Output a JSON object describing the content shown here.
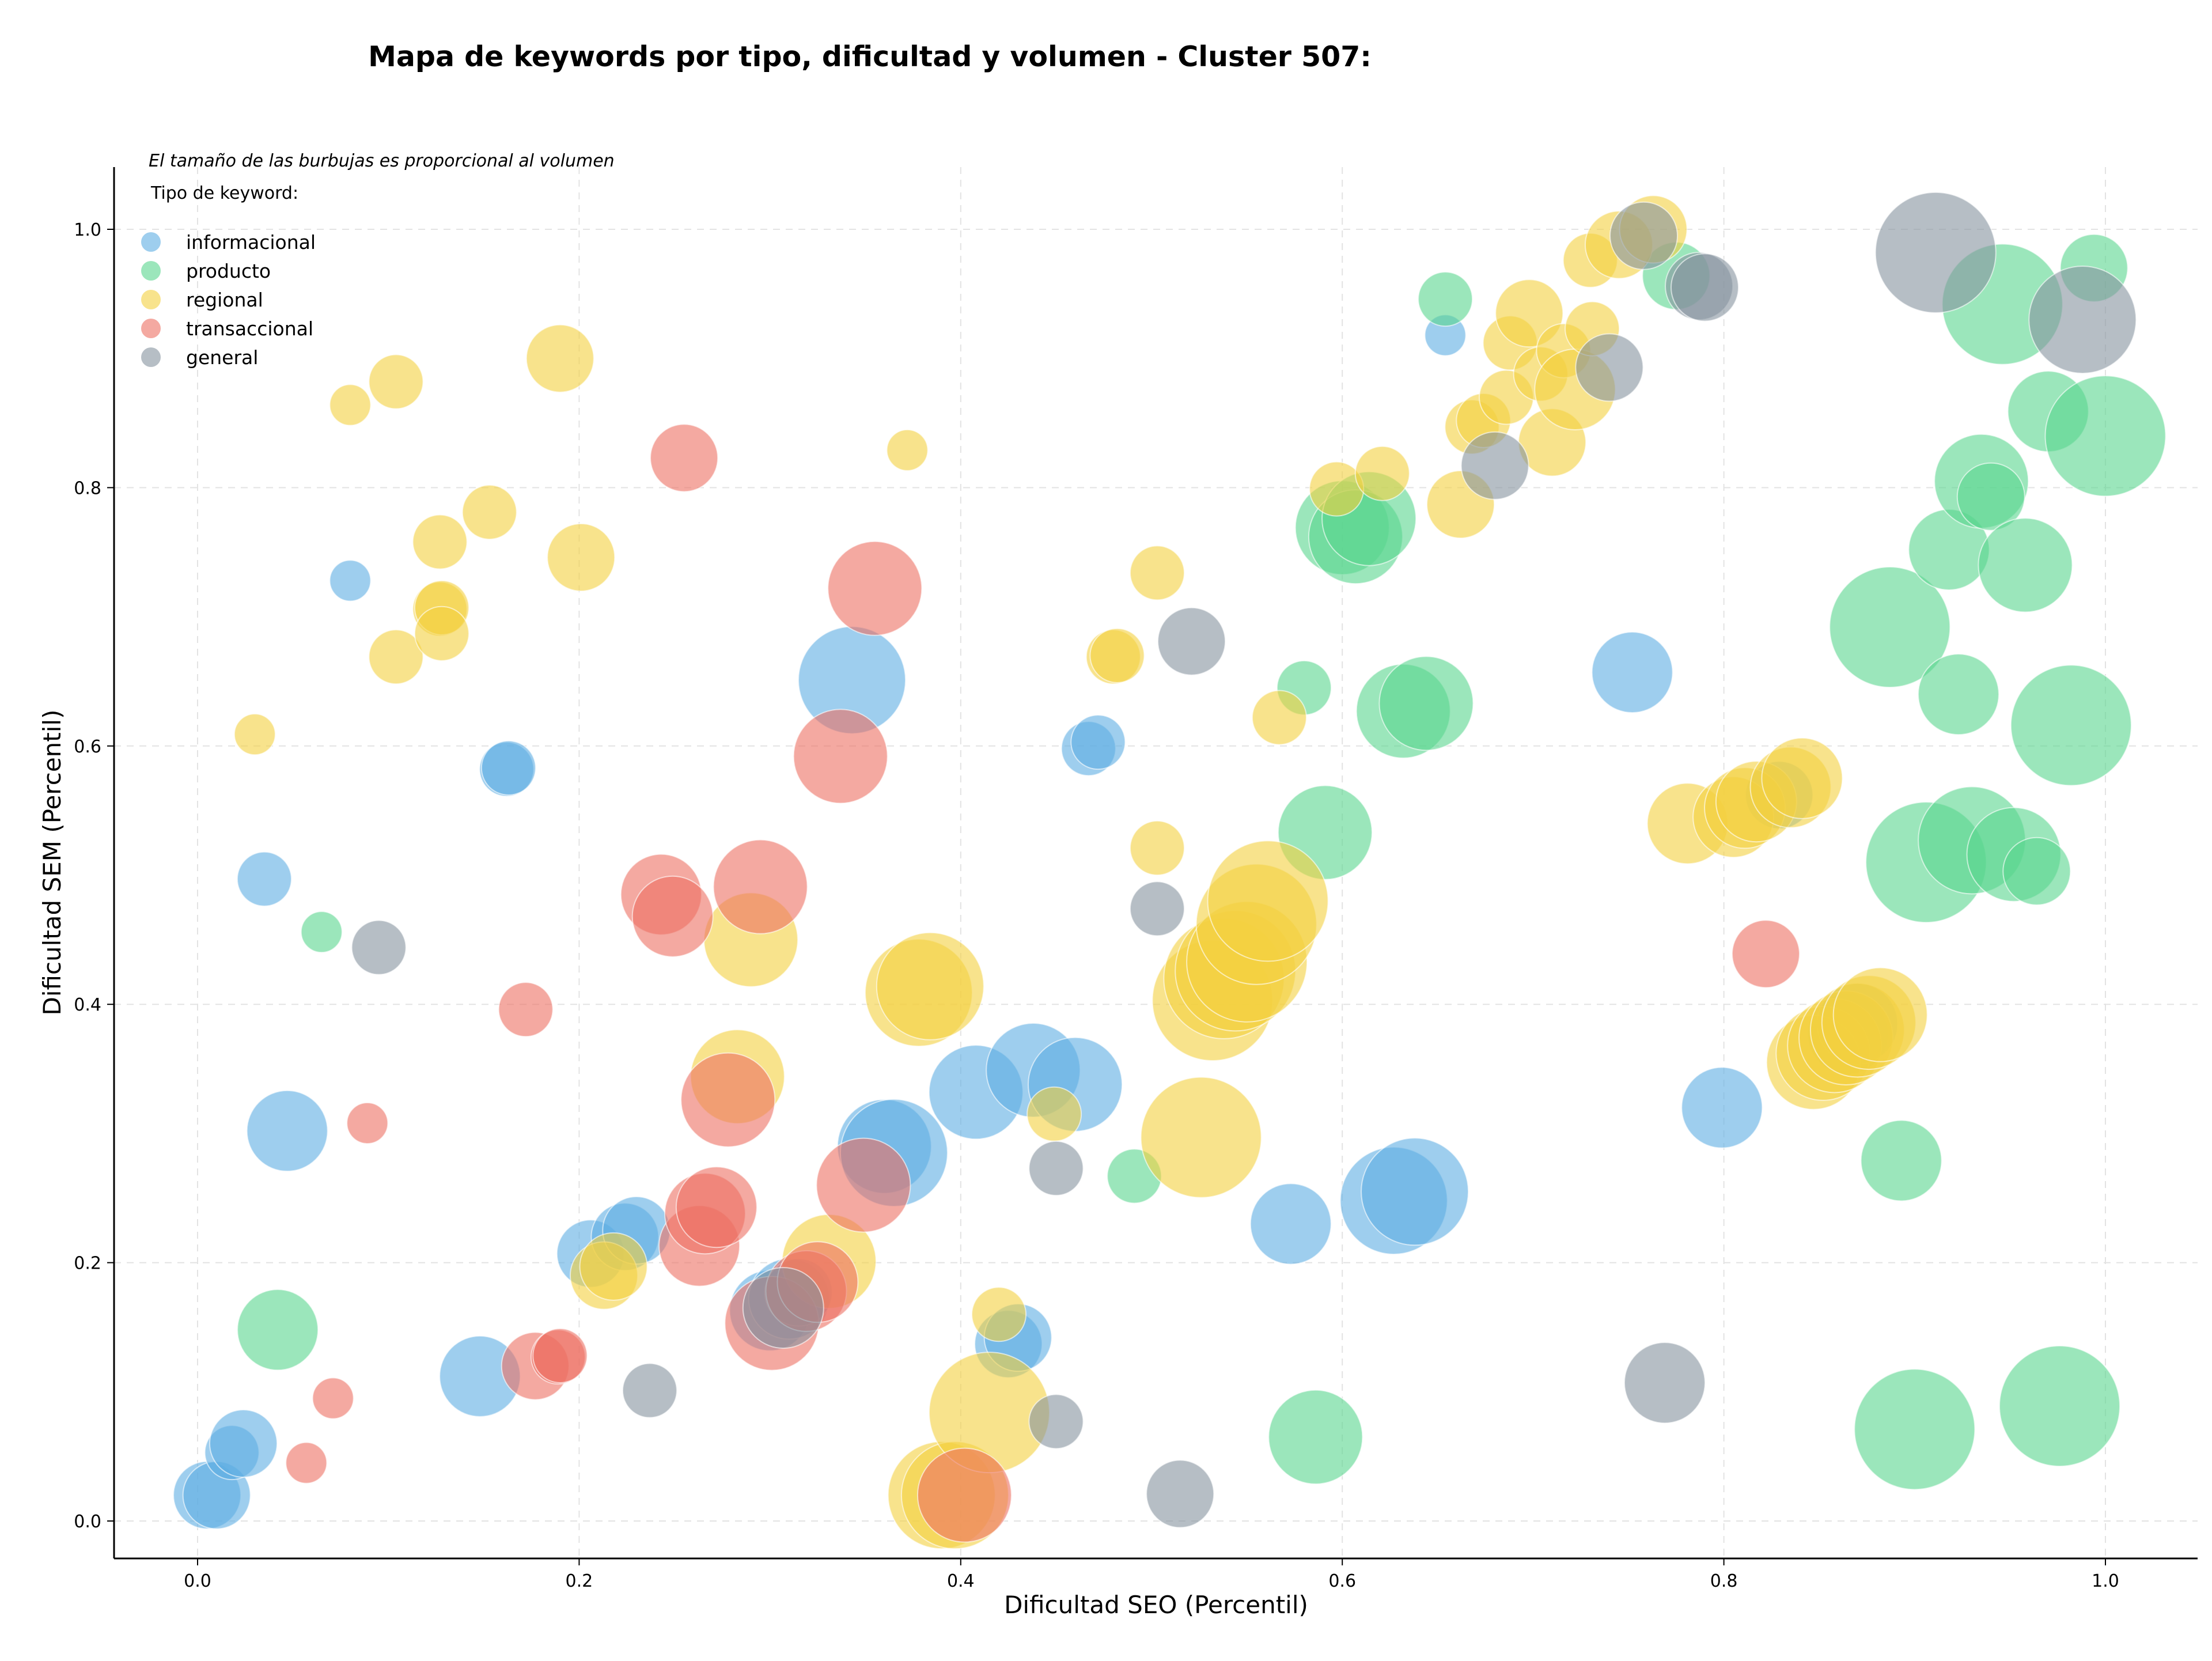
{
  "chart_data": {
    "type": "scatter",
    "title": "Mapa de keywords por tipo, dificultad y volumen - Cluster 507:",
    "xlabel": "Dificultad SEO (Percentil)",
    "ylabel": "Dificultad SEM (Percentil)",
    "note": "El tamaño de las burbujas es proporcional al volumen",
    "legend_title": "Tipo de keyword:",
    "legend_position": "top-left",
    "grid": true,
    "xlim": [
      -0.045,
      1.05
    ],
    "ylim": [
      -0.028,
      1.05
    ],
    "x_ticks": [
      0.0,
      0.2,
      0.4,
      0.6,
      0.8,
      1.0
    ],
    "y_ticks": [
      0.0,
      0.2,
      0.4,
      0.6,
      0.8,
      1.0
    ],
    "x_tick_labels": [
      "0.0",
      "0.2",
      "0.4",
      "0.6",
      "0.8",
      "1.0"
    ],
    "y_tick_labels": [
      "0.0",
      "0.2",
      "0.4",
      "0.6",
      "0.8",
      "1.0"
    ],
    "series": [
      {
        "name": "informacional",
        "color": "#5DADE2",
        "points": [
          {
            "x": 0.005,
            "y": 0.02,
            "size": 3
          },
          {
            "x": 0.01,
            "y": 0.02,
            "size": 3
          },
          {
            "x": 0.018,
            "y": 0.053,
            "size": 2
          },
          {
            "x": 0.024,
            "y": 0.06,
            "size": 3
          },
          {
            "x": 0.035,
            "y": 0.497,
            "size": 2
          },
          {
            "x": 0.047,
            "y": 0.302,
            "size": 4
          },
          {
            "x": 0.08,
            "y": 0.728,
            "size": 1
          },
          {
            "x": 0.148,
            "y": 0.112,
            "size": 4
          },
          {
            "x": 0.162,
            "y": 0.582,
            "size": 2
          },
          {
            "x": 0.163,
            "y": 0.583,
            "size": 2
          },
          {
            "x": 0.206,
            "y": 0.207,
            "size": 3
          },
          {
            "x": 0.224,
            "y": 0.22,
            "size": 3
          },
          {
            "x": 0.23,
            "y": 0.225,
            "size": 3
          },
          {
            "x": 0.3,
            "y": 0.163,
            "size": 4
          },
          {
            "x": 0.31,
            "y": 0.172,
            "size": 4
          },
          {
            "x": 0.315,
            "y": 0.177,
            "size": 3
          },
          {
            "x": 0.343,
            "y": 0.651,
            "size": 6
          },
          {
            "x": 0.36,
            "y": 0.29,
            "size": 5
          },
          {
            "x": 0.365,
            "y": 0.285,
            "size": 6
          },
          {
            "x": 0.408,
            "y": 0.332,
            "size": 5
          },
          {
            "x": 0.425,
            "y": 0.137,
            "size": 3
          },
          {
            "x": 0.43,
            "y": 0.142,
            "size": 3
          },
          {
            "x": 0.438,
            "y": 0.349,
            "size": 5
          },
          {
            "x": 0.46,
            "y": 0.338,
            "size": 5
          },
          {
            "x": 0.467,
            "y": 0.598,
            "size": 2
          },
          {
            "x": 0.472,
            "y": 0.603,
            "size": 2
          },
          {
            "x": 0.573,
            "y": 0.23,
            "size": 4
          },
          {
            "x": 0.627,
            "y": 0.248,
            "size": 6
          },
          {
            "x": 0.638,
            "y": 0.255,
            "size": 6
          },
          {
            "x": 0.654,
            "y": 0.918,
            "size": 1
          },
          {
            "x": 0.752,
            "y": 0.657,
            "size": 4
          },
          {
            "x": 0.799,
            "y": 0.32,
            "size": 4
          },
          {
            "x": 0.829,
            "y": 0.562,
            "size": 3
          },
          {
            "x": 0.865,
            "y": 0.377,
            "size": 4
          },
          {
            "x": 0.87,
            "y": 0.385,
            "size": 4
          }
        ]
      },
      {
        "name": "producto",
        "color": "#58D68D",
        "points": [
          {
            "x": 0.042,
            "y": 0.148,
            "size": 4
          },
          {
            "x": 0.065,
            "y": 0.456,
            "size": 1
          },
          {
            "x": 0.491,
            "y": 0.267,
            "size": 2
          },
          {
            "x": 0.58,
            "y": 0.645,
            "size": 2
          },
          {
            "x": 0.586,
            "y": 0.065,
            "size": 5
          },
          {
            "x": 0.591,
            "y": 0.533,
            "size": 5
          },
          {
            "x": 0.6,
            "y": 0.769,
            "size": 5
          },
          {
            "x": 0.607,
            "y": 0.762,
            "size": 5
          },
          {
            "x": 0.614,
            "y": 0.776,
            "size": 5
          },
          {
            "x": 0.632,
            "y": 0.627,
            "size": 5
          },
          {
            "x": 0.644,
            "y": 0.633,
            "size": 5
          },
          {
            "x": 0.654,
            "y": 0.946,
            "size": 2
          },
          {
            "x": 0.775,
            "y": 0.964,
            "size": 3
          },
          {
            "x": 0.887,
            "y": 0.692,
            "size": 7
          },
          {
            "x": 0.893,
            "y": 0.279,
            "size": 4
          },
          {
            "x": 0.9,
            "y": 0.071,
            "size": 7
          },
          {
            "x": 0.906,
            "y": 0.51,
            "size": 7
          },
          {
            "x": 0.918,
            "y": 0.752,
            "size": 4
          },
          {
            "x": 0.923,
            "y": 0.64,
            "size": 4
          },
          {
            "x": 0.93,
            "y": 0.527,
            "size": 6
          },
          {
            "x": 0.935,
            "y": 0.805,
            "size": 5
          },
          {
            "x": 0.94,
            "y": 0.793,
            "size": 3
          },
          {
            "x": 0.946,
            "y": 0.942,
            "size": 7
          },
          {
            "x": 0.952,
            "y": 0.516,
            "size": 5
          },
          {
            "x": 0.958,
            "y": 0.74,
            "size": 5
          },
          {
            "x": 0.964,
            "y": 0.503,
            "size": 3
          },
          {
            "x": 0.97,
            "y": 0.859,
            "size": 4
          },
          {
            "x": 0.976,
            "y": 0.089,
            "size": 7
          },
          {
            "x": 0.982,
            "y": 0.616,
            "size": 7
          },
          {
            "x": 0.994,
            "y": 0.97,
            "size": 3
          },
          {
            "x": 1.0,
            "y": 0.84,
            "size": 7
          }
        ]
      },
      {
        "name": "regional",
        "color": "#F4D03F",
        "points": [
          {
            "x": 0.03,
            "y": 0.609,
            "size": 1
          },
          {
            "x": 0.08,
            "y": 0.864,
            "size": 1
          },
          {
            "x": 0.104,
            "y": 0.882,
            "size": 2
          },
          {
            "x": 0.104,
            "y": 0.669,
            "size": 2
          },
          {
            "x": 0.127,
            "y": 0.758,
            "size": 2
          },
          {
            "x": 0.127,
            "y": 0.706,
            "size": 2
          },
          {
            "x": 0.128,
            "y": 0.707,
            "size": 2
          },
          {
            "x": 0.128,
            "y": 0.687,
            "size": 2
          },
          {
            "x": 0.153,
            "y": 0.781,
            "size": 2
          },
          {
            "x": 0.19,
            "y": 0.9,
            "size": 3
          },
          {
            "x": 0.201,
            "y": 0.746,
            "size": 3
          },
          {
            "x": 0.213,
            "y": 0.19,
            "size": 3
          },
          {
            "x": 0.218,
            "y": 0.197,
            "size": 3
          },
          {
            "x": 0.283,
            "y": 0.344,
            "size": 5
          },
          {
            "x": 0.29,
            "y": 0.45,
            "size": 5
          },
          {
            "x": 0.331,
            "y": 0.201,
            "size": 5
          },
          {
            "x": 0.372,
            "y": 0.829,
            "size": 1
          },
          {
            "x": 0.378,
            "y": 0.409,
            "size": 6
          },
          {
            "x": 0.384,
            "y": 0.414,
            "size": 6
          },
          {
            "x": 0.39,
            "y": 0.02,
            "size": 6
          },
          {
            "x": 0.397,
            "y": 0.02,
            "size": 6
          },
          {
            "x": 0.415,
            "y": 0.084,
            "size": 7
          },
          {
            "x": 0.42,
            "y": 0.16,
            "size": 2
          },
          {
            "x": 0.449,
            "y": 0.315,
            "size": 2
          },
          {
            "x": 0.48,
            "y": 0.669,
            "size": 2
          },
          {
            "x": 0.482,
            "y": 0.67,
            "size": 2
          },
          {
            "x": 0.503,
            "y": 0.734,
            "size": 2
          },
          {
            "x": 0.503,
            "y": 0.521,
            "size": 2
          },
          {
            "x": 0.526,
            "y": 0.297,
            "size": 7
          },
          {
            "x": 0.532,
            "y": 0.403,
            "size": 7
          },
          {
            "x": 0.538,
            "y": 0.42,
            "size": 7
          },
          {
            "x": 0.544,
            "y": 0.426,
            "size": 7
          },
          {
            "x": 0.55,
            "y": 0.433,
            "size": 7
          },
          {
            "x": 0.555,
            "y": 0.462,
            "size": 7
          },
          {
            "x": 0.561,
            "y": 0.48,
            "size": 7
          },
          {
            "x": 0.567,
            "y": 0.622,
            "size": 2
          },
          {
            "x": 0.597,
            "y": 0.799,
            "size": 2
          },
          {
            "x": 0.621,
            "y": 0.811,
            "size": 2
          },
          {
            "x": 0.662,
            "y": 0.787,
            "size": 3
          },
          {
            "x": 0.668,
            "y": 0.847,
            "size": 2
          },
          {
            "x": 0.674,
            "y": 0.852,
            "size": 2
          },
          {
            "x": 0.686,
            "y": 0.87,
            "size": 2
          },
          {
            "x": 0.688,
            "y": 0.912,
            "size": 2
          },
          {
            "x": 0.698,
            "y": 0.935,
            "size": 3
          },
          {
            "x": 0.704,
            "y": 0.888,
            "size": 2
          },
          {
            "x": 0.71,
            "y": 0.835,
            "size": 3
          },
          {
            "x": 0.716,
            "y": 0.906,
            "size": 2
          },
          {
            "x": 0.722,
            "y": 0.876,
            "size": 4
          },
          {
            "x": 0.73,
            "y": 0.976,
            "size": 2
          },
          {
            "x": 0.731,
            "y": 0.923,
            "size": 2
          },
          {
            "x": 0.745,
            "y": 0.988,
            "size": 3
          },
          {
            "x": 0.763,
            "y": 1.0,
            "size": 3
          },
          {
            "x": 0.781,
            "y": 0.54,
            "size": 4
          },
          {
            "x": 0.805,
            "y": 0.545,
            "size": 4
          },
          {
            "x": 0.811,
            "y": 0.552,
            "size": 4
          },
          {
            "x": 0.817,
            "y": 0.557,
            "size": 4
          },
          {
            "x": 0.835,
            "y": 0.568,
            "size": 4
          },
          {
            "x": 0.841,
            "y": 0.575,
            "size": 4
          },
          {
            "x": 0.847,
            "y": 0.355,
            "size": 5
          },
          {
            "x": 0.852,
            "y": 0.362,
            "size": 5
          },
          {
            "x": 0.858,
            "y": 0.368,
            "size": 5
          },
          {
            "x": 0.864,
            "y": 0.374,
            "size": 5
          },
          {
            "x": 0.87,
            "y": 0.38,
            "size": 5
          },
          {
            "x": 0.876,
            "y": 0.386,
            "size": 5
          },
          {
            "x": 0.882,
            "y": 0.392,
            "size": 5
          }
        ]
      },
      {
        "name": "transaccional",
        "color": "#EC7063",
        "points": [
          {
            "x": 0.057,
            "y": 0.045,
            "size": 1
          },
          {
            "x": 0.071,
            "y": 0.095,
            "size": 1
          },
          {
            "x": 0.089,
            "y": 0.308,
            "size": 1
          },
          {
            "x": 0.172,
            "y": 0.396,
            "size": 2
          },
          {
            "x": 0.177,
            "y": 0.12,
            "size": 3
          },
          {
            "x": 0.189,
            "y": 0.127,
            "size": 2
          },
          {
            "x": 0.19,
            "y": 0.128,
            "size": 2
          },
          {
            "x": 0.243,
            "y": 0.485,
            "size": 4
          },
          {
            "x": 0.249,
            "y": 0.468,
            "size": 4
          },
          {
            "x": 0.255,
            "y": 0.823,
            "size": 3
          },
          {
            "x": 0.263,
            "y": 0.213,
            "size": 4
          },
          {
            "x": 0.266,
            "y": 0.238,
            "size": 4
          },
          {
            "x": 0.272,
            "y": 0.243,
            "size": 4
          },
          {
            "x": 0.278,
            "y": 0.326,
            "size": 5
          },
          {
            "x": 0.295,
            "y": 0.491,
            "size": 5
          },
          {
            "x": 0.301,
            "y": 0.153,
            "size": 5
          },
          {
            "x": 0.319,
            "y": 0.178,
            "size": 4
          },
          {
            "x": 0.325,
            "y": 0.185,
            "size": 4
          },
          {
            "x": 0.337,
            "y": 0.592,
            "size": 5
          },
          {
            "x": 0.349,
            "y": 0.26,
            "size": 5
          },
          {
            "x": 0.355,
            "y": 0.722,
            "size": 5
          },
          {
            "x": 0.402,
            "y": 0.02,
            "size": 5
          },
          {
            "x": 0.822,
            "y": 0.439,
            "size": 3
          }
        ]
      },
      {
        "name": "general",
        "color": "#85929E",
        "points": [
          {
            "x": 0.095,
            "y": 0.444,
            "size": 2
          },
          {
            "x": 0.237,
            "y": 0.101,
            "size": 2
          },
          {
            "x": 0.307,
            "y": 0.165,
            "size": 4
          },
          {
            "x": 0.45,
            "y": 0.077,
            "size": 2
          },
          {
            "x": 0.45,
            "y": 0.273,
            "size": 2
          },
          {
            "x": 0.503,
            "y": 0.474,
            "size": 2
          },
          {
            "x": 0.515,
            "y": 0.021,
            "size": 3
          },
          {
            "x": 0.521,
            "y": 0.681,
            "size": 3
          },
          {
            "x": 0.68,
            "y": 0.817,
            "size": 3
          },
          {
            "x": 0.74,
            "y": 0.893,
            "size": 3
          },
          {
            "x": 0.758,
            "y": 0.995,
            "size": 3
          },
          {
            "x": 0.769,
            "y": 0.107,
            "size": 4
          },
          {
            "x": 0.787,
            "y": 0.956,
            "size": 3
          },
          {
            "x": 0.79,
            "y": 0.955,
            "size": 3
          },
          {
            "x": 0.911,
            "y": 0.982,
            "size": 7
          },
          {
            "x": 0.988,
            "y": 0.93,
            "size": 6
          }
        ]
      }
    ]
  }
}
